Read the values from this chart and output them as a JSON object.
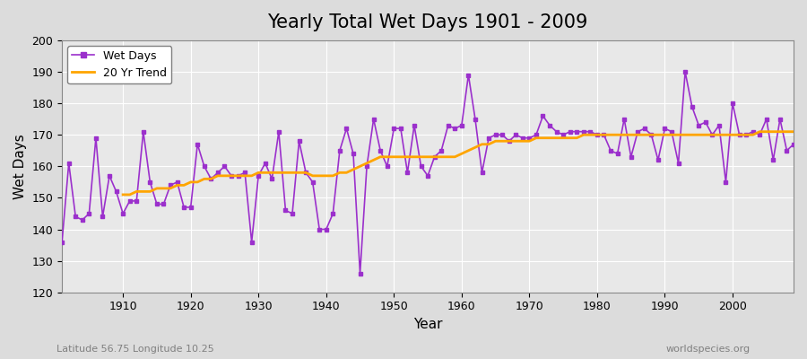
{
  "title": "Yearly Total Wet Days 1901 - 2009",
  "xlabel": "Year",
  "ylabel": "Wet Days",
  "subtitle_left": "Latitude 56.75 Longitude 10.25",
  "subtitle_right": "worldspecies.org",
  "ylim": [
    120,
    200
  ],
  "yticks": [
    120,
    130,
    140,
    150,
    160,
    170,
    180,
    190,
    200
  ],
  "xlim": [
    1901,
    2009
  ],
  "xticks": [
    1910,
    1920,
    1930,
    1940,
    1950,
    1960,
    1970,
    1980,
    1990,
    2000
  ],
  "wet_days_color": "#9B30CC",
  "trend_color": "#FFA500",
  "background_color": "#DCDCDC",
  "plot_bg_color": "#E8E8E8",
  "grid_color": "#FFFFFF",
  "years": [
    1901,
    1902,
    1903,
    1904,
    1905,
    1906,
    1907,
    1908,
    1909,
    1910,
    1911,
    1912,
    1913,
    1914,
    1915,
    1916,
    1917,
    1918,
    1919,
    1920,
    1921,
    1922,
    1923,
    1924,
    1925,
    1926,
    1927,
    1928,
    1929,
    1930,
    1931,
    1932,
    1933,
    1934,
    1935,
    1936,
    1937,
    1938,
    1939,
    1940,
    1941,
    1942,
    1943,
    1944,
    1945,
    1946,
    1947,
    1948,
    1949,
    1950,
    1951,
    1952,
    1953,
    1954,
    1955,
    1956,
    1957,
    1958,
    1959,
    1960,
    1961,
    1962,
    1963,
    1964,
    1965,
    1966,
    1967,
    1968,
    1969,
    1970,
    1971,
    1972,
    1973,
    1974,
    1975,
    1976,
    1977,
    1978,
    1979,
    1980,
    1981,
    1982,
    1983,
    1984,
    1985,
    1986,
    1987,
    1988,
    1989,
    1990,
    1991,
    1992,
    1993,
    1994,
    1995,
    1996,
    1997,
    1998,
    1999,
    2000,
    2001,
    2002,
    2003,
    2004,
    2005,
    2006,
    2007,
    2008,
    2009
  ],
  "wet_days": [
    136,
    161,
    144,
    143,
    145,
    169,
    144,
    157,
    152,
    145,
    149,
    149,
    171,
    155,
    148,
    148,
    154,
    155,
    147,
    147,
    167,
    160,
    156,
    158,
    160,
    157,
    157,
    158,
    136,
    157,
    161,
    156,
    171,
    146,
    145,
    168,
    158,
    155,
    140,
    140,
    145,
    165,
    172,
    164,
    126,
    160,
    175,
    165,
    160,
    172,
    172,
    158,
    173,
    160,
    157,
    163,
    165,
    173,
    172,
    173,
    189,
    175,
    158,
    169,
    170,
    170,
    168,
    170,
    169,
    169,
    170,
    176,
    173,
    171,
    170,
    171,
    171,
    171,
    171,
    170,
    170,
    165,
    164,
    175,
    163,
    171,
    172,
    170,
    162,
    172,
    171,
    161,
    190,
    179,
    173,
    174,
    170,
    173,
    155,
    180,
    170,
    170,
    171,
    170,
    175,
    162,
    175,
    165,
    167
  ],
  "trend_years": [
    1910,
    1911,
    1912,
    1913,
    1914,
    1915,
    1916,
    1917,
    1918,
    1919,
    1920,
    1921,
    1922,
    1923,
    1924,
    1925,
    1926,
    1927,
    1928,
    1929,
    1930,
    1931,
    1932,
    1933,
    1934,
    1935,
    1936,
    1937,
    1938,
    1939,
    1940,
    1941,
    1942,
    1943,
    1944,
    1945,
    1946,
    1947,
    1948,
    1949,
    1950,
    1951,
    1952,
    1953,
    1954,
    1955,
    1956,
    1957,
    1958,
    1959,
    1960,
    1961,
    1962,
    1963,
    1964,
    1965,
    1966,
    1967,
    1968,
    1969,
    1970,
    1971,
    1972,
    1973,
    1974,
    1975,
    1976,
    1977,
    1978,
    1979,
    1980,
    1981,
    1982,
    1983,
    1984,
    1985,
    1986,
    1987,
    1988,
    1989,
    1990,
    1991,
    1992,
    1993,
    1994,
    1995,
    1996,
    1997,
    1998,
    1999,
    2000,
    2001,
    2002,
    2003,
    2004,
    2005,
    2006,
    2007,
    2008,
    2009
  ],
  "trend_values": [
    151,
    151,
    152,
    152,
    152,
    153,
    153,
    153,
    154,
    154,
    155,
    155,
    156,
    156,
    157,
    157,
    157,
    157,
    157,
    157,
    158,
    158,
    158,
    158,
    158,
    158,
    158,
    158,
    157,
    157,
    157,
    157,
    158,
    158,
    159,
    160,
    161,
    162,
    163,
    163,
    163,
    163,
    163,
    163,
    163,
    163,
    163,
    163,
    163,
    163,
    164,
    165,
    166,
    167,
    167,
    168,
    168,
    168,
    168,
    168,
    168,
    169,
    169,
    169,
    169,
    169,
    169,
    169,
    170,
    170,
    170,
    170,
    170,
    170,
    170,
    170,
    170,
    170,
    170,
    170,
    170,
    170,
    170,
    170,
    170,
    170,
    170,
    170,
    170,
    170,
    170,
    170,
    170,
    170,
    171,
    171,
    171,
    171,
    171,
    171
  ]
}
